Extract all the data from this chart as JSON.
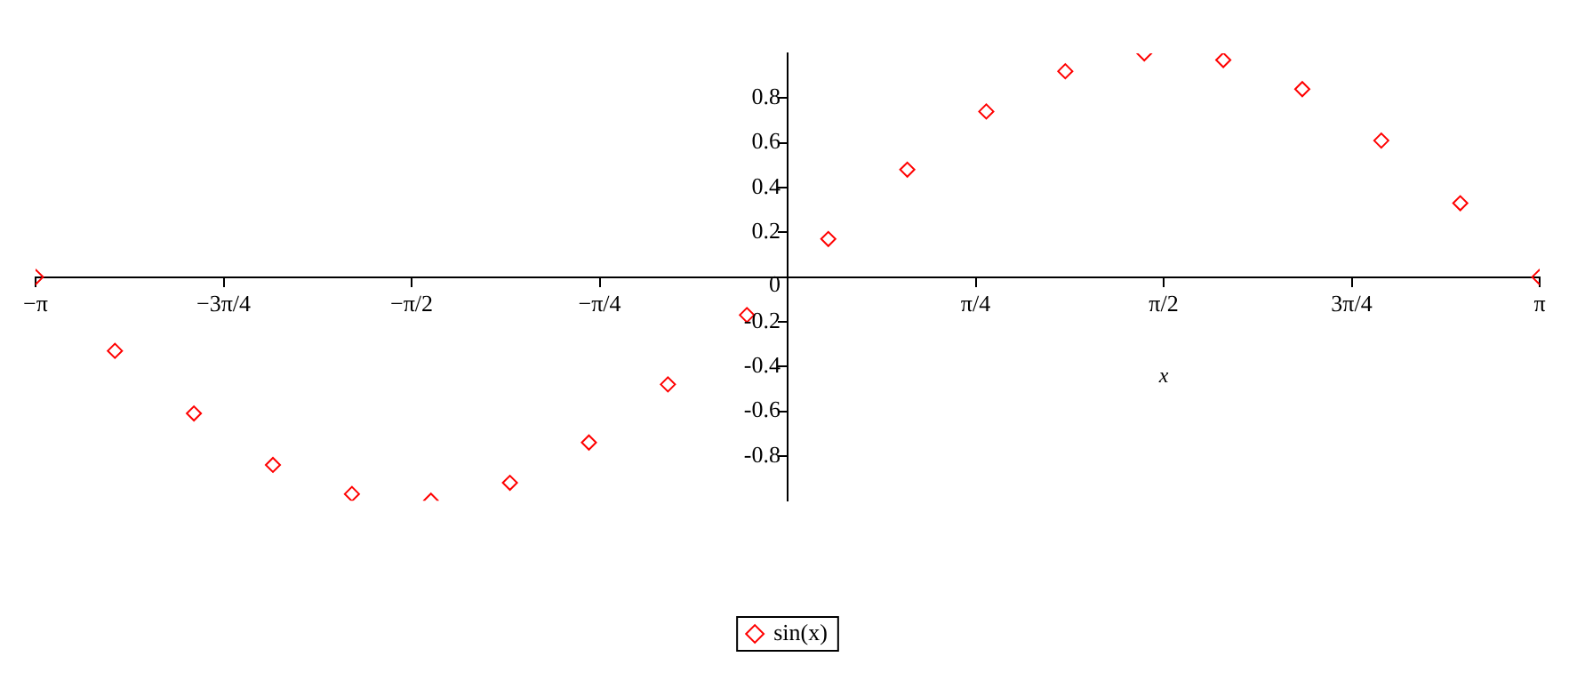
{
  "chart_data": {
    "type": "scatter",
    "xlabel": "x",
    "marker": "diamond",
    "legend": "bottom",
    "grid": false,
    "xlim": [
      -3.1416,
      3.1416
    ],
    "ylim": [
      -1,
      1
    ],
    "xticks": [
      {
        "value": -3.1416,
        "label": "−π"
      },
      {
        "value": -2.3562,
        "label": "−3π/4"
      },
      {
        "value": -1.5708,
        "label": "−π/2"
      },
      {
        "value": -0.7854,
        "label": "−π/4"
      },
      {
        "value": 0.7854,
        "label": "π/4"
      },
      {
        "value": 1.5708,
        "label": "π/2"
      },
      {
        "value": 2.3562,
        "label": "3π/4"
      },
      {
        "value": 3.1416,
        "label": "π"
      }
    ],
    "yticks": [
      -0.8,
      -0.6,
      -0.4,
      -0.2,
      0,
      0.2,
      0.4,
      0.6,
      0.8
    ],
    "series": [
      {
        "name": "sin(x)",
        "color": "#ff0000",
        "x": [
          -3.14,
          -2.81,
          -2.48,
          -2.15,
          -1.82,
          -1.49,
          -1.16,
          -0.83,
          -0.5,
          -0.17,
          0.17,
          0.5,
          0.83,
          1.16,
          1.49,
          1.82,
          2.15,
          2.48,
          2.81,
          3.14
        ],
        "values": [
          0,
          -0.33,
          -0.61,
          -0.84,
          -0.97,
          -1,
          -0.92,
          -0.74,
          -0.48,
          -0.17,
          0.17,
          0.48,
          0.74,
          0.92,
          1,
          0.97,
          0.84,
          0.61,
          0.33,
          0
        ]
      }
    ]
  }
}
